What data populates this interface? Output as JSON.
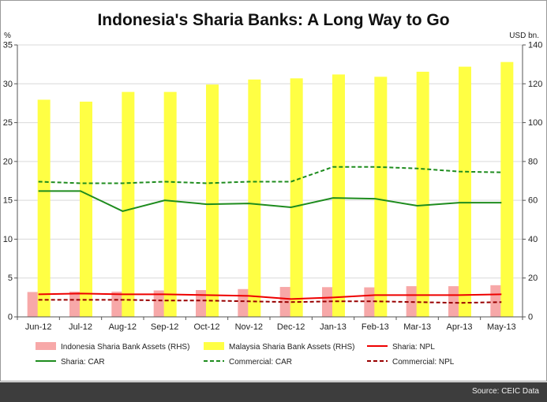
{
  "chart_data": {
    "type": "bar",
    "title": "Indonesia's Sharia Banks: A Long Way to Go",
    "ylabel_left": "%",
    "ylabel_right": "USD bn.",
    "ylim_left": [
      0,
      35
    ],
    "ylim_right": [
      0,
      140
    ],
    "yticks_left": [
      0,
      5,
      10,
      15,
      20,
      25,
      30,
      35
    ],
    "yticks_right": [
      0,
      20,
      40,
      60,
      80,
      100,
      120,
      140
    ],
    "categories": [
      "Jun-12",
      "Jul-12",
      "Aug-12",
      "Sep-12",
      "Oct-12",
      "Nov-12",
      "Dec-12",
      "Jan-13",
      "Feb-13",
      "Mar-13",
      "Apr-13",
      "May-13"
    ],
    "bar_series": [
      {
        "name": "Indonesia Sharia Bank Assets (RHS)",
        "axis": "right",
        "color": "#f7a8a8",
        "values": [
          12.8,
          13.0,
          13.0,
          13.6,
          13.8,
          14.3,
          15.4,
          15.3,
          15.2,
          15.8,
          15.8,
          16.3
        ]
      },
      {
        "name": "Malaysia Sharia Bank Assets (RHS)",
        "axis": "right",
        "color": "#ffff44",
        "values": [
          111.8,
          110.8,
          115.8,
          115.8,
          119.6,
          122.2,
          122.8,
          124.8,
          123.6,
          126.2,
          128.8,
          131.2
        ]
      }
    ],
    "line_series": [
      {
        "name": "Sharia: NPL",
        "axis": "left",
        "color": "#ee0000",
        "style": "solid",
        "values": [
          2.9,
          3.0,
          2.9,
          2.9,
          2.8,
          2.7,
          2.3,
          2.5,
          2.8,
          2.8,
          2.8,
          2.9
        ]
      },
      {
        "name": "Sharia: CAR",
        "axis": "left",
        "color": "#1e8c1e",
        "style": "solid",
        "values": [
          16.2,
          16.2,
          13.6,
          15.0,
          14.5,
          14.6,
          14.1,
          15.3,
          15.2,
          14.3,
          14.7,
          14.7
        ]
      },
      {
        "name": "Commercial: CAR",
        "axis": "left",
        "color": "#1e8c1e",
        "style": "dashed",
        "values": [
          17.4,
          17.2,
          17.2,
          17.4,
          17.2,
          17.4,
          17.4,
          19.3,
          19.3,
          19.1,
          18.7,
          18.6
        ]
      },
      {
        "name": "Commercial: NPL",
        "axis": "left",
        "color": "#990000",
        "style": "dashed",
        "values": [
          2.2,
          2.2,
          2.2,
          2.1,
          2.1,
          2.0,
          1.9,
          2.0,
          2.0,
          1.9,
          1.8,
          1.9
        ]
      }
    ],
    "grid": true,
    "legend": "bottom"
  },
  "source": "Source: CEIC Data"
}
